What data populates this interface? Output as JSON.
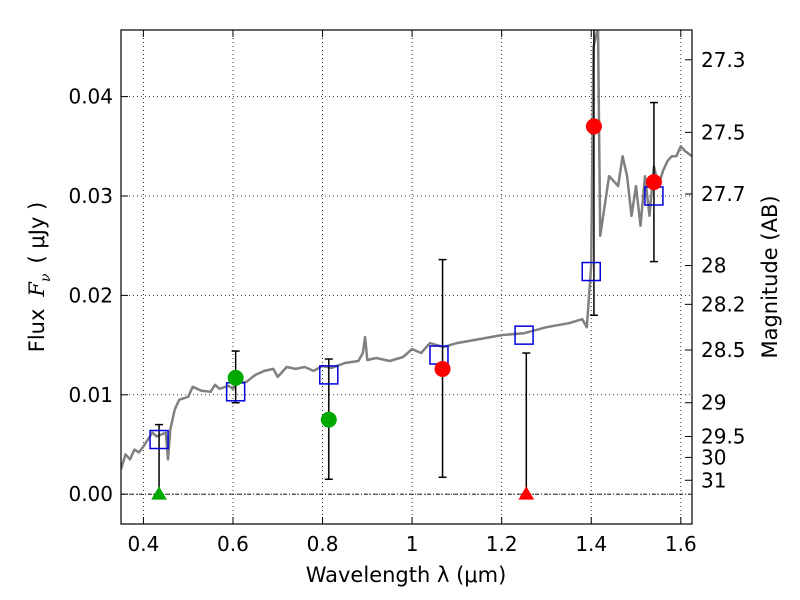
{
  "chart_data": {
    "type": "scatter",
    "xlabel": "Wavelength  λ (μm)",
    "ylabel": "Flux  F_ν  ( μJy )",
    "ylabel_prefix": "Flux",
    "ylabel_symbol": "F",
    "ylabel_subscript": "ν",
    "ylabel_unit": "( μJy )",
    "ylabel_right": "Magnitude (AB)",
    "xlim": [
      0.35,
      1.625
    ],
    "ylim": [
      -0.003,
      0.0467
    ],
    "grid": true,
    "x_ticks": [
      {
        "value": 0.4,
        "label": "0.4"
      },
      {
        "value": 0.6,
        "label": "0.6"
      },
      {
        "value": 0.8,
        "label": "0.8"
      },
      {
        "value": 1.0,
        "label": "1"
      },
      {
        "value": 1.2,
        "label": "1.2"
      },
      {
        "value": 1.4,
        "label": "1.4"
      },
      {
        "value": 1.6,
        "label": "1.6"
      }
    ],
    "y_ticks": [
      {
        "value": 0.0,
        "label": "0.00"
      },
      {
        "value": 0.01,
        "label": "0.01"
      },
      {
        "value": 0.02,
        "label": "0.02"
      },
      {
        "value": 0.03,
        "label": "0.03"
      },
      {
        "value": 0.04,
        "label": "0.04"
      }
    ],
    "right_ticks": [
      {
        "flux": 0.0437,
        "label": "27.3"
      },
      {
        "flux": 0.0364,
        "label": "27.5"
      },
      {
        "flux": 0.0302,
        "label": "27.7"
      },
      {
        "flux": 0.023,
        "label": "28"
      },
      {
        "flux": 0.0191,
        "label": "28.2"
      },
      {
        "flux": 0.0145,
        "label": "28.5"
      },
      {
        "flux": 0.0092,
        "label": "29"
      },
      {
        "flux": 0.0058,
        "label": "29.5"
      },
      {
        "flux": 0.0037,
        "label": "30"
      },
      {
        "flux": 0.0014,
        "label": "31"
      }
    ],
    "model_spectrum": {
      "color": "#808080",
      "points": [
        [
          0.35,
          0.0025
        ],
        [
          0.36,
          0.004
        ],
        [
          0.37,
          0.0035
        ],
        [
          0.38,
          0.0045
        ],
        [
          0.39,
          0.0042
        ],
        [
          0.4,
          0.0048
        ],
        [
          0.41,
          0.0055
        ],
        [
          0.42,
          0.0062
        ],
        [
          0.43,
          0.0058
        ],
        [
          0.44,
          0.006
        ],
        [
          0.45,
          0.0062
        ],
        [
          0.455,
          0.0035
        ],
        [
          0.46,
          0.0065
        ],
        [
          0.47,
          0.0085
        ],
        [
          0.48,
          0.0095
        ],
        [
          0.5,
          0.0098
        ],
        [
          0.51,
          0.0108
        ],
        [
          0.52,
          0.0106
        ],
        [
          0.53,
          0.0104
        ],
        [
          0.55,
          0.0103
        ],
        [
          0.56,
          0.011
        ],
        [
          0.57,
          0.0106
        ],
        [
          0.59,
          0.0109
        ],
        [
          0.6,
          0.0106
        ],
        [
          0.61,
          0.0112
        ],
        [
          0.63,
          0.0113
        ],
        [
          0.65,
          0.012
        ],
        [
          0.67,
          0.0124
        ],
        [
          0.69,
          0.0126
        ],
        [
          0.7,
          0.0118
        ],
        [
          0.72,
          0.0128
        ],
        [
          0.74,
          0.0126
        ],
        [
          0.76,
          0.0128
        ],
        [
          0.78,
          0.0124
        ],
        [
          0.8,
          0.0129
        ],
        [
          0.82,
          0.0127
        ],
        [
          0.85,
          0.0132
        ],
        [
          0.88,
          0.0134
        ],
        [
          0.89,
          0.0142
        ],
        [
          0.895,
          0.0158
        ],
        [
          0.9,
          0.0135
        ],
        [
          0.92,
          0.0137
        ],
        [
          0.95,
          0.0134
        ],
        [
          0.98,
          0.0138
        ],
        [
          1.0,
          0.0146
        ],
        [
          1.02,
          0.0142
        ],
        [
          1.04,
          0.0152
        ],
        [
          1.07,
          0.0148
        ],
        [
          1.1,
          0.0152
        ],
        [
          1.15,
          0.0156
        ],
        [
          1.2,
          0.016
        ],
        [
          1.25,
          0.0162
        ],
        [
          1.3,
          0.0168
        ],
        [
          1.35,
          0.0172
        ],
        [
          1.38,
          0.0176
        ],
        [
          1.39,
          0.0168
        ],
        [
          1.4,
          0.023
        ],
        [
          1.405,
          0.045
        ],
        [
          1.415,
          0.047
        ],
        [
          1.42,
          0.026
        ],
        [
          1.44,
          0.032
        ],
        [
          1.46,
          0.031
        ],
        [
          1.47,
          0.034
        ],
        [
          1.48,
          0.032
        ],
        [
          1.49,
          0.028
        ],
        [
          1.5,
          0.031
        ],
        [
          1.51,
          0.027
        ],
        [
          1.52,
          0.032
        ],
        [
          1.53,
          0.028
        ],
        [
          1.54,
          0.033
        ],
        [
          1.55,
          0.031
        ],
        [
          1.56,
          0.0325
        ],
        [
          1.57,
          0.0335
        ],
        [
          1.58,
          0.034
        ],
        [
          1.59,
          0.034
        ],
        [
          1.6,
          0.035
        ],
        [
          1.61,
          0.0345
        ],
        [
          1.625,
          0.034
        ]
      ]
    },
    "model_photometry": {
      "color": "#0000dd",
      "marker": "open-square",
      "points": [
        [
          0.435,
          0.0055
        ],
        [
          0.606,
          0.0103
        ],
        [
          0.814,
          0.012
        ],
        [
          1.06,
          0.014
        ],
        [
          1.25,
          0.016
        ],
        [
          1.4,
          0.0224
        ],
        [
          1.54,
          0.03
        ]
      ]
    },
    "series": [
      {
        "color": "#00aa00",
        "marker": "circle",
        "points": [
          {
            "x": 0.606,
            "y": 0.0117,
            "err_lo": 0.0092,
            "err_hi": 0.0144
          },
          {
            "x": 0.814,
            "y": 0.0075,
            "err_lo": 0.0015,
            "err_hi": 0.0136
          }
        ]
      },
      {
        "color": "#00aa00",
        "marker": "triangle-up",
        "points": [
          {
            "x": 0.435,
            "y": 0.0,
            "err_lo": 0.0,
            "err_hi": 0.007
          }
        ]
      },
      {
        "color": "#ff0000",
        "marker": "circle",
        "points": [
          {
            "x": 1.068,
            "y": 0.0126,
            "err_lo": 0.0017,
            "err_hi": 0.0236
          },
          {
            "x": 1.406,
            "y": 0.037,
            "err_lo": 0.018,
            "err_hi": 0.047
          },
          {
            "x": 1.54,
            "y": 0.0314,
            "err_lo": 0.0234,
            "err_hi": 0.0394
          }
        ]
      },
      {
        "color": "#ff0000",
        "marker": "triangle-up",
        "points": [
          {
            "x": 1.255,
            "y": 0.0,
            "err_lo": 0.0,
            "err_hi": 0.0142
          }
        ]
      }
    ]
  }
}
